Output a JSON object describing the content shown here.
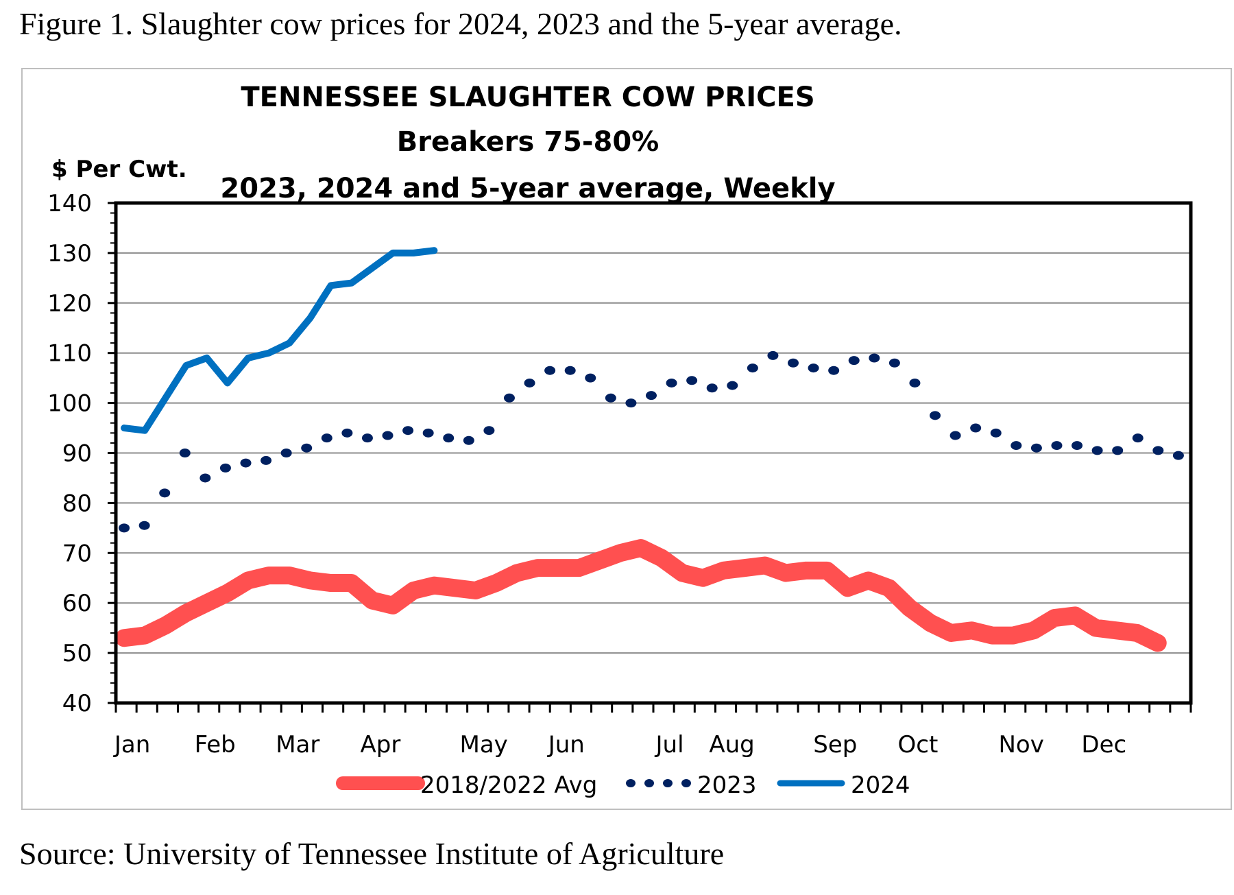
{
  "caption": "Figure 1. Slaughter cow prices for 2024, 2023 and the 5-year average.",
  "source": "Source: University of Tennessee Institute of Agriculture",
  "chart_data": {
    "type": "line",
    "title": [
      "TENNESSEE SLAUGHTER COW PRICES",
      "Breakers 75-80%",
      "2023, 2024 and 5-year average, Weekly"
    ],
    "ylabel": "$ Per Cwt.",
    "xlabel": "",
    "ylim": [
      40,
      140
    ],
    "yticks": [
      "40",
      "50",
      "60",
      "70",
      "80",
      "90",
      "100",
      "110",
      "120",
      "130",
      "140"
    ],
    "x_unit": "week",
    "xlim": [
      0,
      52
    ],
    "month_labels": [
      "Jan",
      "Feb",
      "Mar",
      "Apr",
      "May",
      "Jun",
      "Jul",
      "Aug",
      "Sep",
      "Oct",
      "Nov",
      "Dec"
    ],
    "grid": true,
    "legend": "bottom",
    "series": [
      {
        "name": "2018/2022 Avg",
        "color": "#FF5050",
        "style": "thick-solid",
        "values": [
          53,
          53.5,
          55.5,
          58,
          60,
          62,
          64.5,
          65.5,
          65.5,
          64.5,
          64,
          64,
          60.5,
          59.5,
          62.5,
          63.5,
          63,
          62.5,
          64,
          66,
          67,
          67,
          67,
          68.5,
          70,
          71,
          69,
          66,
          65,
          66.5,
          67,
          67.5,
          66,
          66.5,
          66.5,
          63,
          64.5,
          63,
          59,
          56,
          54,
          54.5,
          53.5,
          53.5,
          54.5,
          57,
          57.5,
          55,
          54.5,
          54,
          52
        ]
      },
      {
        "name": "2023",
        "color": "#002060",
        "style": "dotted",
        "values": [
          75,
          75.5,
          82,
          90,
          85,
          87,
          88,
          88.5,
          90,
          91,
          93,
          94,
          93,
          93.5,
          94.5,
          94,
          93,
          92.5,
          94.5,
          101,
          104,
          106.5,
          106.5,
          105,
          101,
          100,
          101.5,
          104,
          104.5,
          103,
          103.5,
          107,
          109.5,
          108,
          107,
          106.5,
          108.5,
          109,
          108,
          104,
          97.5,
          93.5,
          95,
          94,
          91.5,
          91,
          91.5,
          91.5,
          90.5,
          90.5,
          93,
          90.5,
          89.5
        ]
      },
      {
        "name": "2024",
        "color": "#0070C0",
        "style": "solid",
        "values": [
          95,
          94.5,
          101,
          107.5,
          109,
          104,
          109,
          110,
          112,
          117,
          123.5,
          124,
          127,
          130,
          130,
          130.5
        ]
      }
    ]
  }
}
